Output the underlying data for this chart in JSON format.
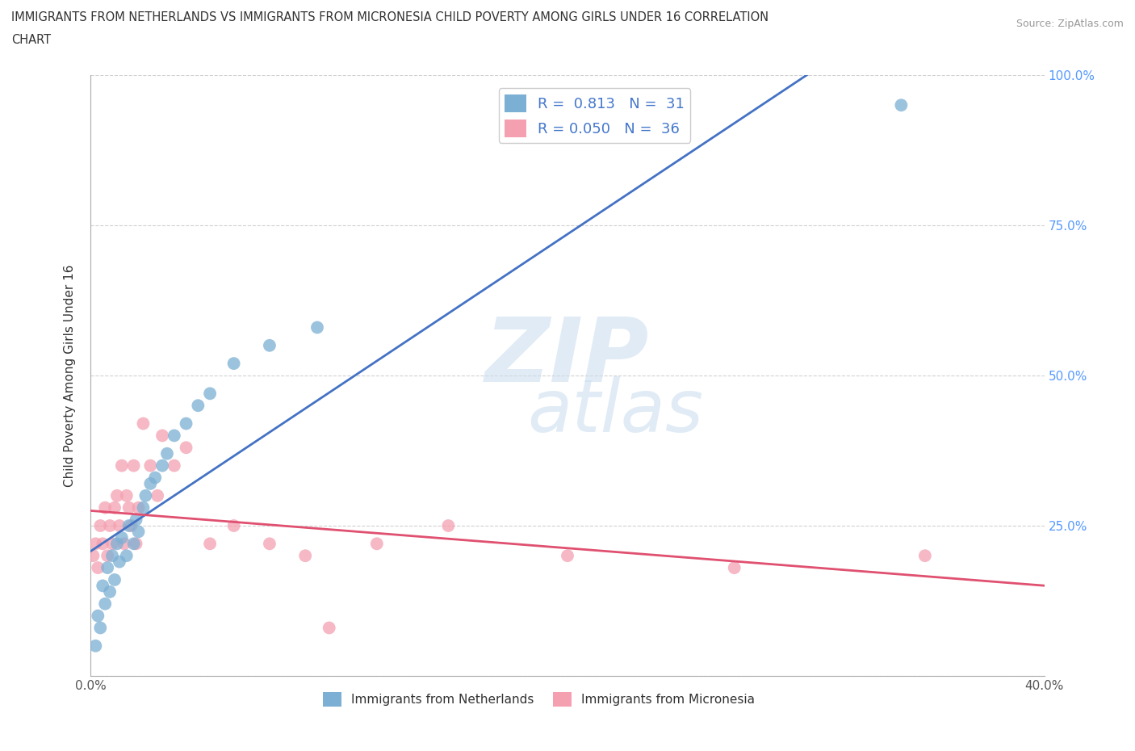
{
  "title_line1": "IMMIGRANTS FROM NETHERLANDS VS IMMIGRANTS FROM MICRONESIA CHILD POVERTY AMONG GIRLS UNDER 16 CORRELATION",
  "title_line2": "CHART",
  "source_text": "Source: ZipAtlas.com",
  "ylabel": "Child Poverty Among Girls Under 16",
  "xlim": [
    0.0,
    0.4
  ],
  "ylim": [
    0.0,
    1.0
  ],
  "x_ticks": [
    0.0,
    0.1,
    0.2,
    0.3,
    0.4
  ],
  "x_tick_labels": [
    "0.0%",
    "",
    "",
    "",
    "40.0%"
  ],
  "y_ticks": [
    0.0,
    0.25,
    0.5,
    0.75,
    1.0
  ],
  "right_y_labels": [
    "",
    "25.0%",
    "50.0%",
    "75.0%",
    "100.0%"
  ],
  "blue_color": "#7BAFD4",
  "pink_color": "#F4A0B0",
  "blue_line_color": "#4472C4",
  "pink_line_color": "#E05070",
  "blue_R": 0.813,
  "blue_N": 31,
  "pink_R": 0.05,
  "pink_N": 36,
  "legend_label_blue": "Immigrants from Netherlands",
  "legend_label_pink": "Immigrants from Micronesia",
  "netherlands_x": [
    0.002,
    0.003,
    0.004,
    0.005,
    0.006,
    0.007,
    0.008,
    0.009,
    0.01,
    0.011,
    0.012,
    0.013,
    0.015,
    0.016,
    0.018,
    0.019,
    0.02,
    0.022,
    0.023,
    0.025,
    0.027,
    0.03,
    0.032,
    0.035,
    0.04,
    0.045,
    0.05,
    0.06,
    0.075,
    0.095,
    0.34
  ],
  "netherlands_y": [
    0.05,
    0.1,
    0.08,
    0.15,
    0.12,
    0.18,
    0.14,
    0.2,
    0.16,
    0.22,
    0.19,
    0.23,
    0.2,
    0.25,
    0.22,
    0.26,
    0.24,
    0.28,
    0.3,
    0.32,
    0.33,
    0.35,
    0.37,
    0.4,
    0.42,
    0.45,
    0.47,
    0.52,
    0.55,
    0.58,
    0.95
  ],
  "micronesia_x": [
    0.001,
    0.002,
    0.003,
    0.004,
    0.005,
    0.006,
    0.007,
    0.008,
    0.009,
    0.01,
    0.011,
    0.012,
    0.013,
    0.014,
    0.015,
    0.016,
    0.017,
    0.018,
    0.019,
    0.02,
    0.022,
    0.025,
    0.028,
    0.03,
    0.035,
    0.04,
    0.05,
    0.06,
    0.075,
    0.09,
    0.1,
    0.12,
    0.15,
    0.2,
    0.27,
    0.35
  ],
  "micronesia_y": [
    0.2,
    0.22,
    0.18,
    0.25,
    0.22,
    0.28,
    0.2,
    0.25,
    0.22,
    0.28,
    0.3,
    0.25,
    0.35,
    0.22,
    0.3,
    0.28,
    0.25,
    0.35,
    0.22,
    0.28,
    0.42,
    0.35,
    0.3,
    0.4,
    0.35,
    0.38,
    0.22,
    0.25,
    0.22,
    0.2,
    0.08,
    0.22,
    0.25,
    0.2,
    0.18,
    0.2
  ],
  "watermark_zip_color": "#C8D8EE",
  "watermark_atlas_color": "#C8D8EE"
}
